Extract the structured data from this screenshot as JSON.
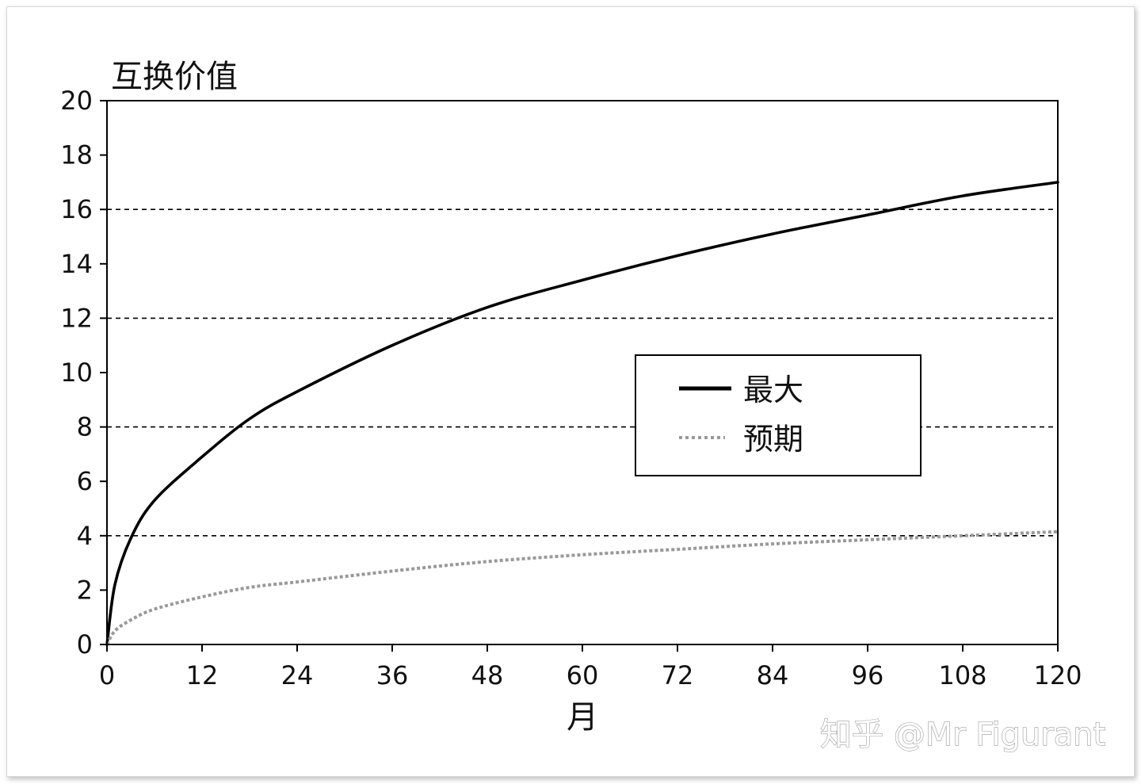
{
  "chart_data": {
    "type": "line",
    "title": "",
    "ylabel": "互换价值",
    "xlabel": "月",
    "xlim": [
      0,
      120
    ],
    "ylim": [
      0,
      20
    ],
    "x_ticks": [
      0,
      12,
      24,
      36,
      48,
      60,
      72,
      84,
      96,
      108,
      120
    ],
    "y_ticks": [
      0,
      2,
      4,
      6,
      8,
      10,
      12,
      14,
      16,
      18,
      20
    ],
    "gridlines_y": [
      4,
      8,
      12,
      16
    ],
    "grid_style": "dashed horizontal",
    "legend_position": "center-right",
    "x": [
      0,
      1,
      3,
      6,
      12,
      18,
      24,
      36,
      48,
      60,
      72,
      84,
      96,
      108,
      120
    ],
    "series": [
      {
        "name": "最大",
        "style": "solid",
        "color": "#000000",
        "values": [
          0,
          2.2,
          3.9,
          5.3,
          6.9,
          8.3,
          9.3,
          11.0,
          12.4,
          13.4,
          14.3,
          15.1,
          15.8,
          16.5,
          17.0
        ]
      },
      {
        "name": "预期",
        "style": "dotted",
        "color": "#999999",
        "values": [
          0,
          0.5,
          0.9,
          1.3,
          1.75,
          2.1,
          2.3,
          2.7,
          3.05,
          3.3,
          3.5,
          3.7,
          3.85,
          4.0,
          4.15
        ]
      }
    ]
  },
  "watermark": "知乎 @Mr Figurant",
  "colors": {
    "axis": "#000000",
    "grid": "#000000",
    "series_max": "#000000",
    "series_expected": "#999999"
  }
}
